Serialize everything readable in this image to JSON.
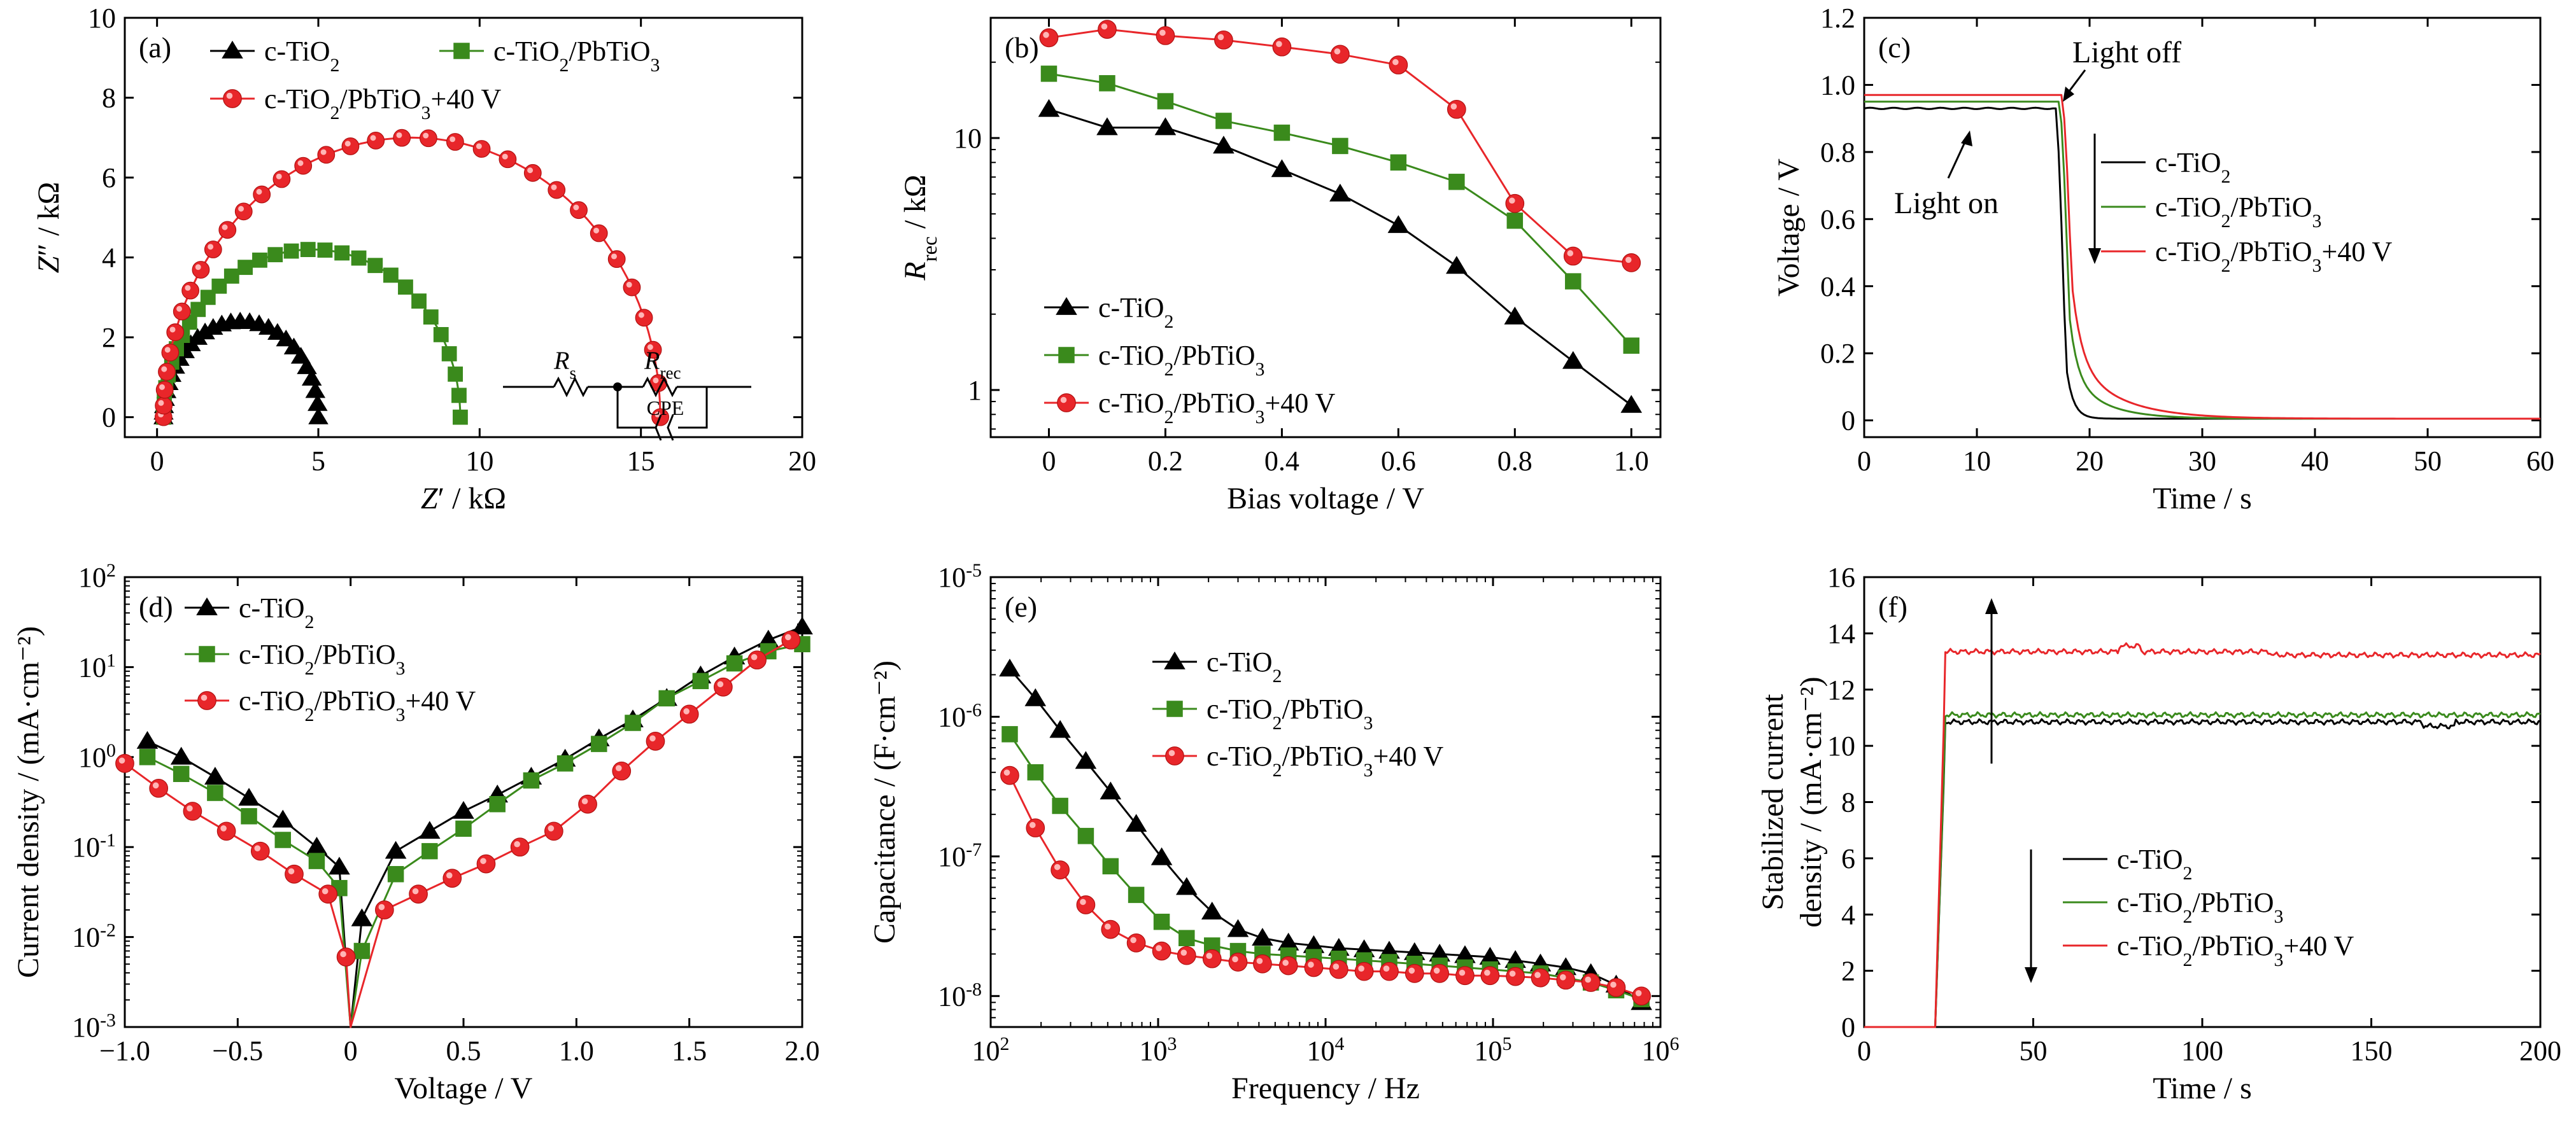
{
  "figure": {
    "series_labels": {
      "a": "c-TiO₂",
      "b": "c-TiO₂/PbTiO₃",
      "c": "c-TiO₂/PbTiO₃+40 V"
    }
  },
  "chart_data": [
    {
      "panel": "(a)",
      "type": "scatter",
      "xlabel": "Z′ / kΩ",
      "ylabel": "Z″ / kΩ",
      "xlim": [
        -1,
        20
      ],
      "ylim": [
        -0.5,
        10
      ],
      "xticks": [
        0,
        5,
        10,
        15,
        20
      ],
      "yticks": [
        0,
        2,
        4,
        6,
        8,
        10
      ],
      "legend_position": "top",
      "inset_circuit": [
        "Rs",
        "Rrec",
        "CPE"
      ],
      "series": [
        {
          "name": "c-TiO₂",
          "marker": "triangle",
          "color": "#000000",
          "semicircle_start": 0.2,
          "semicircle_end": 5.0,
          "peak_height": 2.4
        },
        {
          "name": "c-TiO₂/PbTiO₃",
          "marker": "square",
          "color": "#3a8a1c",
          "semicircle_start": 0.2,
          "semicircle_end": 9.4,
          "peak_height": 4.2
        },
        {
          "name": "c-TiO₂/PbTiO₃+40 V",
          "marker": "circle",
          "color": "#e8262a",
          "semicircle_start": 0.2,
          "semicircle_end": 15.6,
          "peak_height": 7.0
        }
      ]
    },
    {
      "panel": "(b)",
      "type": "line",
      "xlabel": "Bias voltage / V",
      "ylabel": "Rrec / kΩ",
      "yscale": "log",
      "xlim": [
        -0.1,
        1.05
      ],
      "ylim": [
        0.65,
        30
      ],
      "xticks": [
        0,
        0.2,
        0.4,
        0.6,
        0.8,
        1.0
      ],
      "yticks": [
        1,
        10
      ],
      "legend_position": "bottom-left",
      "x": [
        0,
        0.1,
        0.2,
        0.3,
        0.4,
        0.5,
        0.6,
        0.7,
        0.8,
        0.9,
        1.0
      ],
      "series": [
        {
          "name": "c-TiO₂",
          "marker": "triangle",
          "color": "#000000",
          "values": [
            13,
            11,
            11,
            9.3,
            7.5,
            6.0,
            4.5,
            3.1,
            1.95,
            1.3,
            0.87
          ]
        },
        {
          "name": "c-TiO₂/PbTiO₃",
          "marker": "square",
          "color": "#3a8a1c",
          "values": [
            18,
            16.5,
            14,
            11.7,
            10.5,
            9.3,
            8.0,
            6.7,
            4.7,
            2.7,
            1.5
          ]
        },
        {
          "name": "c-TiO₂/PbTiO₃+40 V",
          "marker": "circle",
          "color": "#e8262a",
          "values": [
            25,
            27,
            25.5,
            24.5,
            23,
            21.5,
            19.5,
            13,
            5.5,
            3.4,
            3.2
          ]
        }
      ]
    },
    {
      "panel": "(c)",
      "type": "line",
      "xlabel": "Time / s",
      "ylabel": "Voltage / V",
      "xlim": [
        0,
        60
      ],
      "ylim": [
        -0.05,
        1.2
      ],
      "xticks": [
        0,
        10,
        20,
        30,
        40,
        50,
        60
      ],
      "yticks": [
        0,
        0.2,
        0.4,
        0.6,
        0.8,
        1.0,
        1.2
      ],
      "legend_position": "right",
      "annotations": [
        "Light off",
        "Light on"
      ],
      "series": [
        {
          "name": "c-TiO₂",
          "color": "#000000",
          "plateau": 0.93,
          "drop_time": 17.0,
          "decay_tau": 0.8
        },
        {
          "name": "c-TiO₂/PbTiO₃",
          "color": "#3a8a1c",
          "plateau": 0.95,
          "drop_time": 17.3,
          "decay_tau": 3.0
        },
        {
          "name": "c-TiO₂/PbTiO₃+40 V",
          "color": "#e8262a",
          "plateau": 0.97,
          "drop_time": 17.5,
          "decay_tau": 4.0
        }
      ]
    },
    {
      "panel": "(d)",
      "type": "line",
      "xlabel": "Voltage / V",
      "ylabel": "Current density / (mA·cm⁻²)",
      "yscale": "log",
      "xlim": [
        -1.0,
        2.0
      ],
      "ylim": [
        0.001,
        100
      ],
      "xticks": [
        -1.0,
        -0.5,
        0,
        0.5,
        1.0,
        1.5,
        2.0
      ],
      "yticks": [
        0.001,
        0.01,
        0.1,
        1,
        10,
        100
      ],
      "legend_position": "top-left",
      "series": [
        {
          "name": "c-TiO₂",
          "marker": "triangle",
          "color": "#000000",
          "x": [
            -0.9,
            -0.75,
            -0.6,
            -0.45,
            -0.3,
            -0.15,
            -0.05,
            0.05,
            0.2,
            0.35,
            0.5,
            0.65,
            0.8,
            0.95,
            1.1,
            1.25,
            1.4,
            1.55,
            1.7,
            1.85,
            2.0
          ],
          "values": [
            1.5,
            1.0,
            0.6,
            0.35,
            0.2,
            0.1,
            0.06,
            0.016,
            0.09,
            0.15,
            0.25,
            0.38,
            0.6,
            0.95,
            1.6,
            2.6,
            4.5,
            8,
            13,
            20,
            28
          ]
        },
        {
          "name": "c-TiO₂/PbTiO₃",
          "marker": "square",
          "color": "#3a8a1c",
          "x": [
            -0.9,
            -0.75,
            -0.6,
            -0.45,
            -0.3,
            -0.15,
            -0.05,
            0.05,
            0.2,
            0.35,
            0.5,
            0.65,
            0.8,
            0.95,
            1.1,
            1.25,
            1.4,
            1.55,
            1.7,
            1.85,
            2.0
          ],
          "values": [
            1.0,
            0.65,
            0.4,
            0.22,
            0.12,
            0.07,
            0.035,
            0.007,
            0.05,
            0.09,
            0.16,
            0.3,
            0.55,
            0.85,
            1.4,
            2.4,
            4.5,
            7,
            11,
            15,
            18
          ]
        },
        {
          "name": "c-TiO₂/PbTiO₃+40 V",
          "marker": "circle",
          "color": "#e8262a",
          "x": [
            -1.0,
            -0.85,
            -0.7,
            -0.55,
            -0.4,
            -0.25,
            -0.1,
            -0.02,
            0.15,
            0.3,
            0.45,
            0.6,
            0.75,
            0.9,
            1.05,
            1.2,
            1.35,
            1.5,
            1.65,
            1.8,
            1.95
          ],
          "values": [
            0.85,
            0.45,
            0.25,
            0.15,
            0.09,
            0.05,
            0.03,
            0.006,
            0.02,
            0.03,
            0.045,
            0.065,
            0.1,
            0.15,
            0.3,
            0.7,
            1.5,
            3,
            6,
            12,
            20
          ]
        }
      ]
    },
    {
      "panel": "(e)",
      "type": "line",
      "xlabel": "Frequency / Hz",
      "ylabel": "Capacitance / (F·cm⁻²)",
      "xscale": "log",
      "yscale": "log",
      "xlim": [
        100,
        1000000
      ],
      "ylim": [
        6e-09,
        1e-05
      ],
      "xticks": [
        100,
        1000,
        10000,
        100000,
        1000000
      ],
      "yticks": [
        1e-08,
        1e-07,
        1e-06,
        1e-05
      ],
      "legend_position": "top-right",
      "x": [
        130,
        185,
        260,
        370,
        520,
        740,
        1050,
        1480,
        2100,
        3000,
        4200,
        6000,
        8500,
        12000,
        17000,
        24000,
        34000,
        48000,
        68000,
        96000,
        136000,
        192000,
        272000,
        384000,
        544000,
        770000
      ],
      "series": [
        {
          "name": "c-TiO₂",
          "marker": "triangle",
          "color": "#000000",
          "values": [
            2.2e-06,
            1.35e-06,
            8e-07,
            4.8e-07,
            2.9e-07,
            1.7e-07,
            9.8e-08,
            6e-08,
            4e-08,
            3e-08,
            2.6e-08,
            2.4e-08,
            2.3e-08,
            2.2e-08,
            2.15e-08,
            2.1e-08,
            2.05e-08,
            2e-08,
            1.95e-08,
            1.9e-08,
            1.8e-08,
            1.7e-08,
            1.6e-08,
            1.45e-08,
            1.2e-08,
            9e-09
          ]
        },
        {
          "name": "c-TiO₂/PbTiO₃",
          "marker": "square",
          "color": "#3a8a1c",
          "values": [
            7.5e-07,
            4e-07,
            2.3e-07,
            1.4e-07,
            8.5e-08,
            5.3e-08,
            3.4e-08,
            2.6e-08,
            2.3e-08,
            2.1e-08,
            2e-08,
            1.95e-08,
            1.9e-08,
            1.85e-08,
            1.8e-08,
            1.75e-08,
            1.7e-08,
            1.65e-08,
            1.6e-08,
            1.55e-08,
            1.5e-08,
            1.45e-08,
            1.35e-08,
            1.25e-08,
            1.1e-08,
            9.5e-09
          ]
        },
        {
          "name": "c-TiO₂/PbTiO₃+40 V",
          "marker": "circle",
          "color": "#e8262a",
          "values": [
            3.8e-07,
            1.6e-07,
            8e-08,
            4.5e-08,
            3e-08,
            2.4e-08,
            2.1e-08,
            1.95e-08,
            1.85e-08,
            1.75e-08,
            1.7e-08,
            1.65e-08,
            1.6e-08,
            1.55e-08,
            1.5e-08,
            1.5e-08,
            1.45e-08,
            1.45e-08,
            1.4e-08,
            1.4e-08,
            1.38e-08,
            1.35e-08,
            1.3e-08,
            1.25e-08,
            1.15e-08,
            1e-08
          ]
        }
      ]
    },
    {
      "panel": "(f)",
      "type": "line",
      "xlabel": "Time / s",
      "ylabel": "Stabilized current density / (mA·cm⁻²)",
      "xlim": [
        0,
        200
      ],
      "ylim": [
        0,
        16
      ],
      "xticks": [
        0,
        50,
        100,
        150,
        200
      ],
      "yticks": [
        0,
        2,
        4,
        6,
        8,
        10,
        12,
        14,
        16
      ],
      "legend_position": "bottom-right",
      "series": [
        {
          "name": "c-TiO₂",
          "color": "#000000",
          "onset_time": 21,
          "plateau": 10.85
        },
        {
          "name": "c-TiO₂/PbTiO₃",
          "color": "#3a8a1c",
          "onset_time": 21,
          "plateau": 11.1
        },
        {
          "name": "c-TiO₂/PbTiO₃+40 V",
          "color": "#e8262a",
          "onset_time": 21,
          "plateau": 13.35
        }
      ]
    }
  ]
}
